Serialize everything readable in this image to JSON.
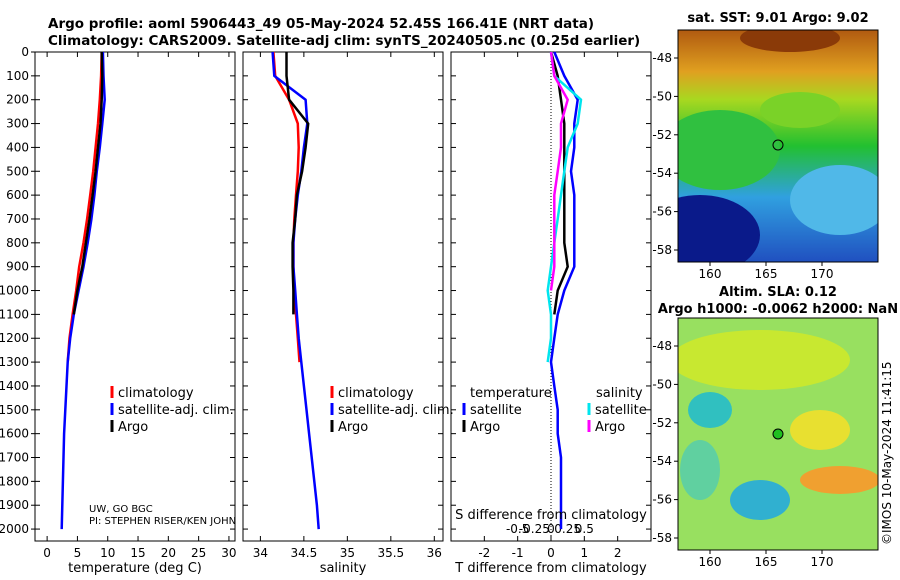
{
  "header": {
    "line1": "Argo profile: aoml 5906443_49 05-May-2024 52.45S 166.41E (NRT data)",
    "line2": "Climatology: CARS2009. Satellite-adj clim: synTS_20240505.nc (0.25d earlier)"
  },
  "colors": {
    "climatology": "#ff0000",
    "satellite": "#0000ff",
    "argo": "#000000",
    "sat_t": "#00e5ee",
    "sat_s": "#ff00ff"
  },
  "depth_ticks": [
    0,
    100,
    200,
    300,
    400,
    500,
    600,
    700,
    800,
    900,
    1000,
    1100,
    1200,
    1300,
    1400,
    1500,
    1600,
    1700,
    1800,
    1900,
    2000
  ],
  "credit": {
    "line1": "UW, GO BGC",
    "line2": "PI: STEPHEN RISER/KEN JOHN"
  },
  "map_sst": {
    "title": "sat. SST: 9.01 Argo: 9.02",
    "lat_ticks": [
      "-48",
      "-50",
      "-52",
      "-54",
      "-56",
      "-58"
    ],
    "lon_ticks": [
      "160",
      "165",
      "170"
    ]
  },
  "map_sla": {
    "title1": "Altim. SLA: 0.12",
    "title2": "Argo h1000: -0.0062 h2000: NaN",
    "lat_ticks": [
      "-48",
      "-50",
      "-52",
      "-54",
      "-56",
      "-58"
    ],
    "lon_ticks": [
      "160",
      "165",
      "170"
    ]
  },
  "watermark": "©IMOS 10-May-2024 11:41:15",
  "chart_data": [
    {
      "type": "line",
      "id": "temperature",
      "xlabel": "temperature (deg C)",
      "ylabel": "depth",
      "xlim": [
        -2,
        31
      ],
      "ylim": [
        2050,
        0
      ],
      "xticks": [
        0,
        5,
        10,
        15,
        20,
        25,
        30
      ],
      "legend": [
        "climatology",
        "satellite-adj. clim.",
        "Argo"
      ],
      "series": [
        {
          "name": "climatology",
          "color": "#ff0000",
          "x": [
            9.0,
            8.9,
            8.7,
            8.4,
            8.0,
            7.6,
            7.1,
            6.6,
            6.0,
            5.3,
            4.8,
            4.2,
            3.7,
            3.4
          ],
          "y": [
            0,
            100,
            200,
            300,
            400,
            500,
            600,
            700,
            800,
            900,
            1000,
            1100,
            1200,
            1300
          ]
        },
        {
          "name": "satellite-adj. clim.",
          "color": "#0000ff",
          "x": [
            9.2,
            9.3,
            9.5,
            9.1,
            8.7,
            8.2,
            7.8,
            7.3,
            6.7,
            6.0,
            5.2,
            4.4,
            3.8,
            3.4,
            3.2,
            3.0,
            2.8,
            2.7,
            2.6,
            2.5,
            2.4
          ],
          "y": [
            0,
            100,
            200,
            300,
            400,
            500,
            600,
            700,
            800,
            900,
            1000,
            1100,
            1200,
            1300,
            1400,
            1500,
            1600,
            1700,
            1800,
            1900,
            2000
          ]
        },
        {
          "name": "Argo",
          "color": "#000000",
          "x": [
            9.0,
            9.1,
            9.0,
            8.8,
            8.4,
            8.0,
            7.5,
            7.0,
            6.4,
            5.8,
            5.0,
            4.4
          ],
          "y": [
            0,
            100,
            200,
            300,
            400,
            500,
            600,
            700,
            800,
            900,
            1000,
            1100
          ]
        }
      ]
    },
    {
      "type": "line",
      "id": "salinity",
      "xlabel": "salinity",
      "xlim": [
        33.8,
        36.1
      ],
      "ylim": [
        2050,
        0
      ],
      "xticks": [
        34,
        34.5,
        35,
        35.5,
        36
      ],
      "legend": [
        "climatology",
        "satellite-adj. clim.",
        "Argo"
      ],
      "series": [
        {
          "name": "climatology",
          "color": "#ff0000",
          "x": [
            34.15,
            34.17,
            34.33,
            34.43,
            34.44,
            34.43,
            34.41,
            34.39,
            34.38,
            34.38,
            34.39,
            34.41,
            34.43,
            34.45
          ],
          "y": [
            0,
            100,
            200,
            300,
            400,
            500,
            600,
            700,
            800,
            900,
            1000,
            1100,
            1200,
            1300
          ]
        },
        {
          "name": "satellite-adj. clim.",
          "color": "#0000ff",
          "x": [
            34.14,
            34.16,
            34.52,
            34.54,
            34.5,
            34.47,
            34.43,
            34.4,
            34.38,
            34.38,
            34.4,
            34.42,
            34.44,
            34.47,
            34.5,
            34.53,
            34.56,
            34.59,
            34.62,
            34.65,
            34.67
          ],
          "y": [
            0,
            100,
            200,
            300,
            400,
            500,
            600,
            700,
            800,
            900,
            1000,
            1100,
            1200,
            1300,
            1400,
            1500,
            1600,
            1700,
            1800,
            1900,
            2000
          ]
        },
        {
          "name": "Argo",
          "color": "#000000",
          "x": [
            34.3,
            34.3,
            34.33,
            34.55,
            34.52,
            34.48,
            34.42,
            34.4,
            34.37,
            34.37,
            34.38,
            34.38
          ],
          "y": [
            0,
            100,
            200,
            300,
            400,
            500,
            600,
            700,
            800,
            900,
            1000,
            1100
          ]
        }
      ]
    },
    {
      "type": "line",
      "id": "difference",
      "xlabel": "T difference from climatology",
      "xlabel_top": "S difference from climatology",
      "xlim": [
        -3,
        3
      ],
      "ylim": [
        2050,
        0
      ],
      "xticks": [
        -2,
        -1,
        0,
        1,
        2
      ],
      "xticks_top": [
        "-0.5",
        "-0.25",
        "0",
        "0.25",
        "0.5"
      ],
      "legend_left_title": "temperature",
      "legend_right_title": "salinity",
      "legend_left": [
        "satellite",
        "Argo"
      ],
      "legend_right": [
        "satellite",
        "Argo"
      ],
      "series": [
        {
          "name": "T satellite-adj",
          "color": "#0000ff",
          "x": [
            0.1,
            0.4,
            0.8,
            0.7,
            0.7,
            0.6,
            0.7,
            0.7,
            0.7,
            0.7,
            0.4,
            0.2,
            0.1,
            0.0,
            0.1,
            0.2,
            0.2,
            0.3,
            0.3,
            0.3,
            0.3
          ],
          "y": [
            0,
            100,
            200,
            300,
            400,
            500,
            600,
            700,
            800,
            900,
            1000,
            1100,
            1200,
            1300,
            1400,
            1500,
            1600,
            1700,
            1800,
            1900,
            2000
          ]
        },
        {
          "name": "T Argo",
          "color": "#000000",
          "x": [
            0.0,
            0.2,
            0.3,
            0.4,
            0.4,
            0.4,
            0.4,
            0.4,
            0.4,
            0.5,
            0.2,
            0.1
          ],
          "y": [
            0,
            100,
            200,
            300,
            400,
            500,
            600,
            700,
            800,
            900,
            1000,
            1100
          ]
        },
        {
          "name": "S satellite-adj",
          "color": "#00e5ee",
          "x": [
            0.0,
            0.1,
            0.9,
            0.8,
            0.5,
            0.4,
            0.3,
            0.2,
            0.1,
            0.0,
            -0.1,
            0.0,
            0.0,
            -0.1
          ],
          "y": [
            0,
            100,
            200,
            300,
            400,
            500,
            600,
            700,
            800,
            900,
            1000,
            1100,
            1200,
            1300
          ]
        },
        {
          "name": "S Argo",
          "color": "#ff00ff",
          "x": [
            0.0,
            0.1,
            0.5,
            0.3,
            0.3,
            0.2,
            0.1,
            0.1,
            0.1,
            0.1,
            0.0
          ],
          "y": [
            0,
            100,
            200,
            300,
            400,
            500,
            600,
            700,
            800,
            900,
            1000
          ]
        }
      ]
    }
  ]
}
